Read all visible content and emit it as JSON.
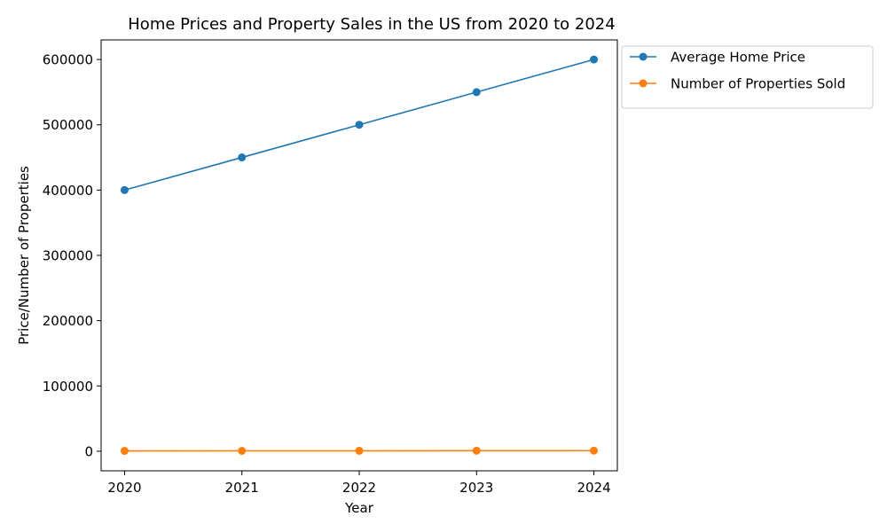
{
  "chart_data": {
    "type": "line",
    "title": "Home Prices and Property Sales in the US from 2020 to 2024",
    "xlabel": "Year",
    "ylabel": "Price/Number of Properties",
    "x": [
      2020,
      2021,
      2022,
      2023,
      2024
    ],
    "series": [
      {
        "name": "Average Home Price",
        "values": [
          400000,
          450000,
          500000,
          550000,
          600000
        ],
        "color": "#1f77b4"
      },
      {
        "name": "Number of Properties Sold",
        "values": [
          500,
          600,
          700,
          800,
          900
        ],
        "color": "#ff7f0e"
      }
    ],
    "xlim": [
      2019.8,
      2024.2
    ],
    "ylim": [
      -30000,
      630000
    ],
    "yticks": [
      0,
      100000,
      200000,
      300000,
      400000,
      500000,
      600000
    ],
    "xticks": [
      2020,
      2021,
      2022,
      2023,
      2024
    ],
    "grid": false,
    "legend": "outside-top-right"
  }
}
